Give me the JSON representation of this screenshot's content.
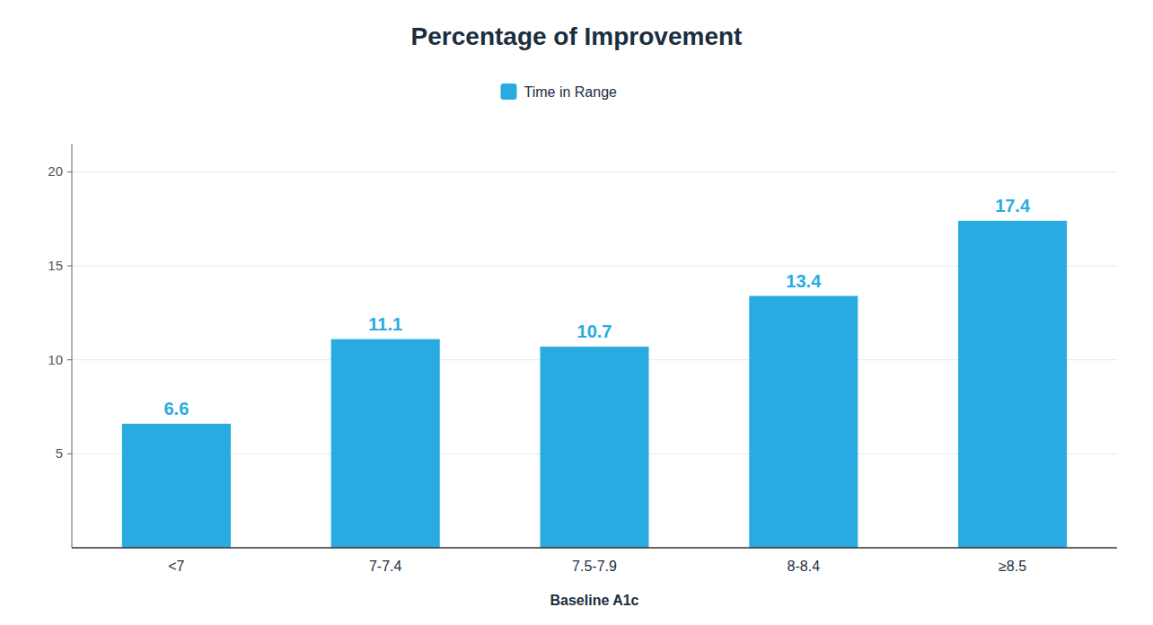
{
  "chart_data": {
    "type": "bar",
    "title": "Percentage of Improvement",
    "xlabel": "Baseline A1c",
    "categories": [
      "<7",
      "7-7.4",
      "7.5-7.9",
      "8-8.4",
      "≥8.5"
    ],
    "series": [
      {
        "name": "Time in Range",
        "color": "#29ABE2",
        "values": [
          6.6,
          11.1,
          10.7,
          13.4,
          17.4
        ]
      }
    ],
    "ylim": [
      0,
      21.5
    ],
    "yticks": [
      5,
      10,
      15,
      20
    ],
    "grid": true,
    "data_labels": true,
    "legend": "top"
  }
}
